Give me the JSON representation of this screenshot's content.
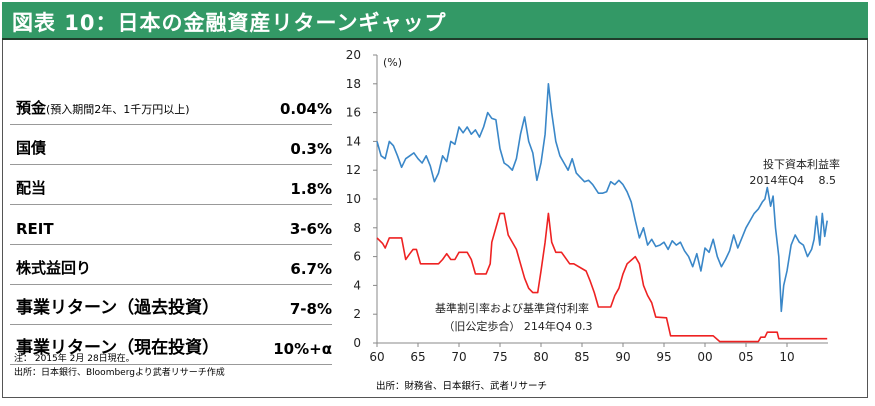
{
  "title": "図表 10：日本の金融資産リターンギャップ",
  "colors": {
    "title_bar": "#339966",
    "roic_line": "#3a87c8",
    "rate_line": "#ee2222"
  },
  "returns_table": [
    {
      "label": "預金",
      "sublabel": "(預入期間2年、1千万円以上)",
      "value": "0.04%"
    },
    {
      "label": "国債",
      "sublabel": "",
      "value": "0.3%"
    },
    {
      "label": "配当",
      "sublabel": "",
      "value": "1.8%"
    },
    {
      "label": "REIT",
      "sublabel": "",
      "value": "3-6%"
    },
    {
      "label": "株式益回り",
      "sublabel": "",
      "value": "6.7%"
    },
    {
      "label": "事業リターン（過去投資）",
      "sublabel": "",
      "value": "7-8%"
    },
    {
      "label": "事業リターン（現在投資）",
      "sublabel": "",
      "value": "10%+α"
    }
  ],
  "notes": {
    "note": "注： 2015年 2月 28日現在。",
    "source_left": "出所：日本銀行、Bloombergより武者リサーチ作成",
    "source_right": "出所：財務省、日本銀行、武者リサーチ"
  },
  "chart_data": {
    "type": "line",
    "title": "",
    "xlabel": "",
    "ylabel": "(%)",
    "xlim": [
      1960,
      2015
    ],
    "ylim": [
      0,
      20
    ],
    "x_ticks": [
      1960,
      1965,
      1970,
      1975,
      1980,
      1985,
      1990,
      1995,
      2000,
      2005,
      2010
    ],
    "x_tick_labels": [
      "60",
      "65",
      "70",
      "75",
      "80",
      "85",
      "90",
      "95",
      "00",
      "05",
      "10"
    ],
    "y_ticks": [
      0,
      2,
      4,
      6,
      8,
      10,
      12,
      14,
      16,
      18,
      20
    ],
    "y_tick_labels": [
      "0",
      "2",
      "4",
      "6",
      "8",
      "10",
      "12",
      "14",
      "16",
      "18",
      "20"
    ],
    "grid": false,
    "annotations": [
      {
        "text": "投下資本利益率",
        "series": "roic"
      },
      {
        "text": "2014年Q4　 8.5",
        "series": "roic"
      },
      {
        "text": "基準割引率および基準貸付利率",
        "series": "rate"
      },
      {
        "text": "（旧公定歩合） 214年Q4  0.3",
        "series": "rate"
      }
    ],
    "series": [
      {
        "name": "投下資本利益率",
        "key": "roic",
        "x": [
          1960,
          1960.5,
          1961,
          1961.5,
          1962,
          1962.5,
          1963,
          1963.5,
          1964,
          1964.5,
          1965,
          1965.5,
          1966,
          1966.5,
          1967,
          1967.5,
          1968,
          1968.5,
          1969,
          1969.5,
          1970,
          1970.5,
          1971,
          1971.5,
          1972,
          1972.5,
          1973,
          1973.5,
          1974,
          1974.5,
          1975,
          1975.5,
          1976,
          1976.5,
          1977,
          1977.5,
          1978,
          1978.5,
          1979,
          1979.5,
          1980,
          1980.5,
          1980.9,
          1981.3,
          1981.8,
          1982.3,
          1982.8,
          1983.3,
          1983.8,
          1984.3,
          1984.8,
          1985.3,
          1985.8,
          1986.3,
          1987,
          1987.5,
          1988,
          1988.5,
          1989,
          1989.5,
          1990,
          1990.5,
          1991,
          1991.5,
          1992,
          1992.5,
          1993,
          1993.5,
          1994,
          1994.5,
          1995,
          1995.5,
          1996,
          1996.5,
          1997,
          1997.5,
          1998,
          1998.5,
          1999,
          1999.5,
          2000,
          2000.5,
          2001,
          2001.5,
          2002,
          2002.5,
          2003,
          2003.5,
          2004,
          2004.5,
          2005,
          2005.5,
          2006,
          2006.5,
          2007,
          2007.3,
          2007.6,
          2008,
          2008.3,
          2008.6,
          2009,
          2009.3,
          2009.6,
          2010,
          2010.5,
          2011,
          2011.5,
          2012,
          2012.5,
          2013,
          2013.3,
          2013.6,
          2014,
          2014.3,
          2014.6,
          2014.9
        ],
        "values": [
          14.0,
          13.0,
          12.8,
          14.0,
          13.7,
          13.0,
          12.2,
          12.8,
          13.0,
          13.2,
          12.8,
          12.5,
          13.0,
          12.3,
          11.2,
          11.8,
          13.0,
          12.6,
          14.0,
          13.8,
          15.0,
          14.6,
          15.0,
          14.5,
          14.8,
          14.3,
          15.0,
          16.0,
          15.6,
          15.5,
          13.5,
          12.5,
          12.3,
          12.0,
          12.8,
          14.5,
          15.7,
          14.0,
          13.2,
          11.3,
          12.5,
          14.5,
          18.0,
          16.0,
          14.0,
          13.0,
          12.5,
          12.0,
          12.8,
          11.8,
          11.5,
          11.2,
          11.3,
          11.0,
          10.4,
          10.4,
          10.5,
          11.2,
          11.0,
          11.3,
          11.0,
          10.5,
          9.8,
          8.5,
          7.3,
          8.0,
          6.8,
          7.2,
          6.7,
          6.8,
          7.0,
          6.5,
          7.1,
          6.8,
          7.0,
          6.4,
          6.0,
          5.3,
          6.2,
          5.0,
          6.6,
          6.3,
          7.2,
          6.0,
          5.3,
          5.8,
          6.4,
          7.5,
          6.6,
          7.3,
          8.0,
          8.5,
          9.0,
          9.3,
          9.8,
          10.0,
          10.8,
          9.5,
          10.2,
          8.0,
          6.0,
          2.2,
          4.0,
          5.0,
          6.8,
          7.5,
          7.0,
          6.8,
          6.0,
          6.5,
          7.2,
          8.8,
          6.8,
          9.0,
          7.4,
          8.5
        ]
      },
      {
        "name": "基準割引率および基準貸付利率",
        "key": "rate",
        "x": [
          1960,
          1960.7,
          1961,
          1961.5,
          1962,
          1962.5,
          1963,
          1963.5,
          1964,
          1964.4,
          1964.8,
          1965.3,
          1966,
          1967.5,
          1968,
          1968.5,
          1969,
          1969.5,
          1970,
          1971,
          1971.5,
          1972,
          1973.3,
          1973.8,
          1974,
          1975,
          1975.5,
          1976,
          1977,
          1977.5,
          1978,
          1978.5,
          1979,
          1979.6,
          1980,
          1980.5,
          1980.9,
          1981.3,
          1981.8,
          1982.5,
          1983.5,
          1984,
          1985.5,
          1986,
          1986.5,
          1987,
          1988.5,
          1989,
          1989.5,
          1990,
          1990.5,
          1991.5,
          1992,
          1992.5,
          1993,
          1993.5,
          1994,
          1995.3,
          1995.8,
          2001,
          2001.8,
          2006.5,
          2006.8,
          2007.3,
          2007.6,
          2008.8,
          2009,
          2014.9
        ],
        "values": [
          7.3,
          6.9,
          6.6,
          7.3,
          7.3,
          7.3,
          7.3,
          5.8,
          6.2,
          6.5,
          6.5,
          5.5,
          5.5,
          5.5,
          5.8,
          6.2,
          5.8,
          5.8,
          6.3,
          6.3,
          5.8,
          4.8,
          4.8,
          5.5,
          7.0,
          9.0,
          9.0,
          7.5,
          6.5,
          5.5,
          4.5,
          3.8,
          3.5,
          3.5,
          5.0,
          7.0,
          9.0,
          7.0,
          6.3,
          6.3,
          5.5,
          5.5,
          5.0,
          4.3,
          3.5,
          2.5,
          2.5,
          3.3,
          3.8,
          4.8,
          5.5,
          6.0,
          5.5,
          4.0,
          3.3,
          2.8,
          1.8,
          1.75,
          0.5,
          0.5,
          0.1,
          0.1,
          0.4,
          0.4,
          0.75,
          0.75,
          0.3,
          0.3
        ]
      }
    ]
  }
}
